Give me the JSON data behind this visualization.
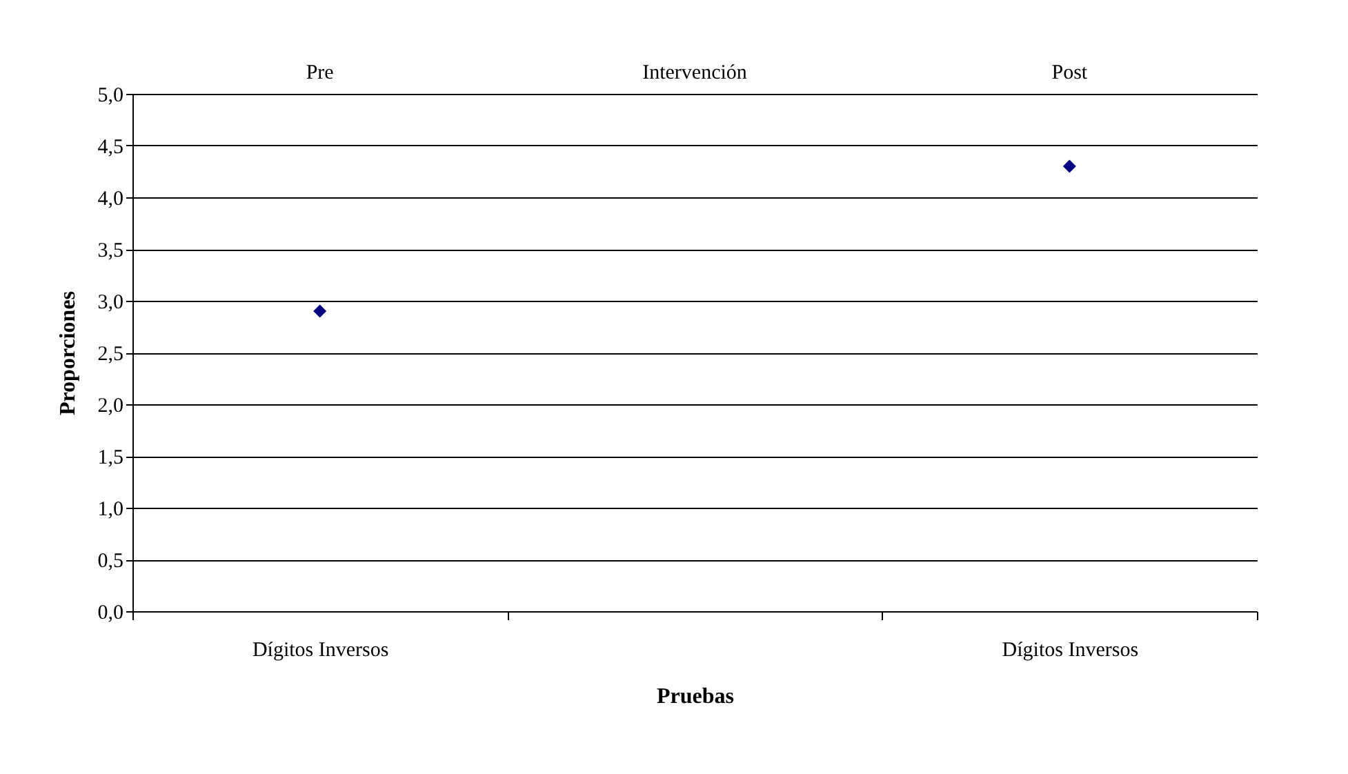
{
  "chart_data": {
    "type": "scatter",
    "xlabel": "Pruebas",
    "ylabel": "Proporciones",
    "categories": [
      "Dígitos Inversos",
      null,
      "Dígitos Inversos"
    ],
    "values": [
      2.9,
      null,
      4.3
    ],
    "color": "#000080",
    "marker": "diamond",
    "grid": "y",
    "ylim": [
      0,
      5
    ],
    "yticks": [
      {
        "value": 0,
        "label": "0,0"
      },
      {
        "value": 0.5,
        "label": "0,5"
      },
      {
        "value": 1,
        "label": "1,0"
      },
      {
        "value": 1.5,
        "label": "1,5"
      },
      {
        "value": 2,
        "label": "2,0"
      },
      {
        "value": 2.5,
        "label": "2,5"
      },
      {
        "value": 3,
        "label": "3,0"
      },
      {
        "value": 3.5,
        "label": "3,5"
      },
      {
        "value": 4,
        "label": "4,0"
      },
      {
        "value": 4.5,
        "label": "4,5"
      },
      {
        "value": 5,
        "label": "5,0"
      }
    ],
    "annotations": [
      "Pre",
      "Intervención",
      "Post"
    ]
  }
}
